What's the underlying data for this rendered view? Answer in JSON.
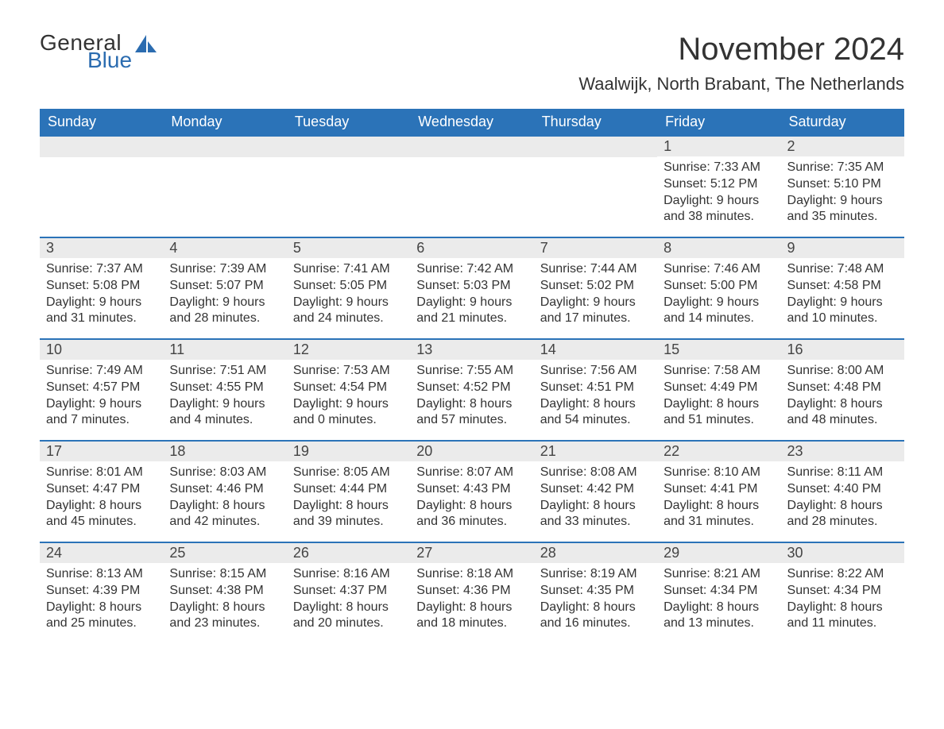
{
  "logo": {
    "general": "General",
    "blue": "Blue"
  },
  "title": "November 2024",
  "location": "Waalwijk, North Brabant, The Netherlands",
  "colors": {
    "header_bg": "#2b73b8",
    "header_text": "#ffffff",
    "day_header_bg": "#ebebeb",
    "day_border_top": "#2b73b8",
    "text": "#333333",
    "logo_blue": "#2b6cb0",
    "background": "#ffffff"
  },
  "fonts": {
    "title_size_pt": 30,
    "location_size_pt": 17,
    "weekday_size_pt": 14,
    "daynum_size_pt": 14,
    "body_size_pt": 12
  },
  "weekdays": [
    "Sunday",
    "Monday",
    "Tuesday",
    "Wednesday",
    "Thursday",
    "Friday",
    "Saturday"
  ],
  "grid": {
    "start_weekday_index": 5,
    "rows": 5,
    "cols": 7
  },
  "days": [
    {
      "n": 1,
      "sunrise": "7:33 AM",
      "sunset": "5:12 PM",
      "daylight": "9 hours and 38 minutes."
    },
    {
      "n": 2,
      "sunrise": "7:35 AM",
      "sunset": "5:10 PM",
      "daylight": "9 hours and 35 minutes."
    },
    {
      "n": 3,
      "sunrise": "7:37 AM",
      "sunset": "5:08 PM",
      "daylight": "9 hours and 31 minutes."
    },
    {
      "n": 4,
      "sunrise": "7:39 AM",
      "sunset": "5:07 PM",
      "daylight": "9 hours and 28 minutes."
    },
    {
      "n": 5,
      "sunrise": "7:41 AM",
      "sunset": "5:05 PM",
      "daylight": "9 hours and 24 minutes."
    },
    {
      "n": 6,
      "sunrise": "7:42 AM",
      "sunset": "5:03 PM",
      "daylight": "9 hours and 21 minutes."
    },
    {
      "n": 7,
      "sunrise": "7:44 AM",
      "sunset": "5:02 PM",
      "daylight": "9 hours and 17 minutes."
    },
    {
      "n": 8,
      "sunrise": "7:46 AM",
      "sunset": "5:00 PM",
      "daylight": "9 hours and 14 minutes."
    },
    {
      "n": 9,
      "sunrise": "7:48 AM",
      "sunset": "4:58 PM",
      "daylight": "9 hours and 10 minutes."
    },
    {
      "n": 10,
      "sunrise": "7:49 AM",
      "sunset": "4:57 PM",
      "daylight": "9 hours and 7 minutes."
    },
    {
      "n": 11,
      "sunrise": "7:51 AM",
      "sunset": "4:55 PM",
      "daylight": "9 hours and 4 minutes."
    },
    {
      "n": 12,
      "sunrise": "7:53 AM",
      "sunset": "4:54 PM",
      "daylight": "9 hours and 0 minutes."
    },
    {
      "n": 13,
      "sunrise": "7:55 AM",
      "sunset": "4:52 PM",
      "daylight": "8 hours and 57 minutes."
    },
    {
      "n": 14,
      "sunrise": "7:56 AM",
      "sunset": "4:51 PM",
      "daylight": "8 hours and 54 minutes."
    },
    {
      "n": 15,
      "sunrise": "7:58 AM",
      "sunset": "4:49 PM",
      "daylight": "8 hours and 51 minutes."
    },
    {
      "n": 16,
      "sunrise": "8:00 AM",
      "sunset": "4:48 PM",
      "daylight": "8 hours and 48 minutes."
    },
    {
      "n": 17,
      "sunrise": "8:01 AM",
      "sunset": "4:47 PM",
      "daylight": "8 hours and 45 minutes."
    },
    {
      "n": 18,
      "sunrise": "8:03 AM",
      "sunset": "4:46 PM",
      "daylight": "8 hours and 42 minutes."
    },
    {
      "n": 19,
      "sunrise": "8:05 AM",
      "sunset": "4:44 PM",
      "daylight": "8 hours and 39 minutes."
    },
    {
      "n": 20,
      "sunrise": "8:07 AM",
      "sunset": "4:43 PM",
      "daylight": "8 hours and 36 minutes."
    },
    {
      "n": 21,
      "sunrise": "8:08 AM",
      "sunset": "4:42 PM",
      "daylight": "8 hours and 33 minutes."
    },
    {
      "n": 22,
      "sunrise": "8:10 AM",
      "sunset": "4:41 PM",
      "daylight": "8 hours and 31 minutes."
    },
    {
      "n": 23,
      "sunrise": "8:11 AM",
      "sunset": "4:40 PM",
      "daylight": "8 hours and 28 minutes."
    },
    {
      "n": 24,
      "sunrise": "8:13 AM",
      "sunset": "4:39 PM",
      "daylight": "8 hours and 25 minutes."
    },
    {
      "n": 25,
      "sunrise": "8:15 AM",
      "sunset": "4:38 PM",
      "daylight": "8 hours and 23 minutes."
    },
    {
      "n": 26,
      "sunrise": "8:16 AM",
      "sunset": "4:37 PM",
      "daylight": "8 hours and 20 minutes."
    },
    {
      "n": 27,
      "sunrise": "8:18 AM",
      "sunset": "4:36 PM",
      "daylight": "8 hours and 18 minutes."
    },
    {
      "n": 28,
      "sunrise": "8:19 AM",
      "sunset": "4:35 PM",
      "daylight": "8 hours and 16 minutes."
    },
    {
      "n": 29,
      "sunrise": "8:21 AM",
      "sunset": "4:34 PM",
      "daylight": "8 hours and 13 minutes."
    },
    {
      "n": 30,
      "sunrise": "8:22 AM",
      "sunset": "4:34 PM",
      "daylight": "8 hours and 11 minutes."
    }
  ],
  "labels": {
    "sunrise": "Sunrise:",
    "sunset": "Sunset:",
    "daylight": "Daylight:"
  }
}
